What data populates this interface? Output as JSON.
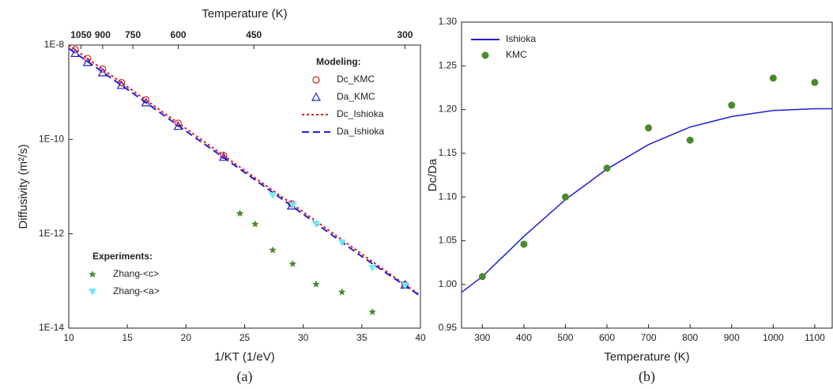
{
  "chart_data": [
    {
      "type": "scatter",
      "x2label": "Temperature (K)",
      "x_label": "1/KT (1/eV)",
      "y_label": "Diffusivity (m²/s)",
      "caption": "(a)",
      "xlim": [
        10,
        40
      ],
      "xticks": [
        10,
        15,
        20,
        25,
        30,
        35,
        40
      ],
      "x2ticks": [
        {
          "value": 11.05,
          "label": "1050"
        },
        {
          "value": 12.89,
          "label": "900"
        },
        {
          "value": 15.47,
          "label": "750"
        },
        {
          "value": 19.34,
          "label": "600"
        },
        {
          "value": 25.79,
          "label": "450"
        },
        {
          "value": 38.68,
          "label": "300"
        }
      ],
      "log_y": true,
      "ylim": [
        1e-14,
        1e-08
      ],
      "yticks": [
        {
          "value": 1e-14,
          "label": "1E-14"
        },
        {
          "value": 1e-12,
          "label": "1E-12"
        },
        {
          "value": 1e-10,
          "label": "1E-10"
        },
        {
          "value": 1e-08,
          "label": "1E-8"
        }
      ],
      "legend_headers": [
        "Modeling:",
        "Experiments:"
      ],
      "legend_loc": [
        "upper right",
        "lower left"
      ],
      "series": [
        {
          "name": "Dc_KMC",
          "group": 0,
          "marker": "open-circle",
          "color": "#e02020",
          "x": [
            10.55,
            11.6,
            12.89,
            14.5,
            16.58,
            19.34,
            23.21,
            29.01,
            38.68
          ],
          "values": [
            8e-09,
            5.2e-09,
            3.1e-09,
            1.6e-09,
            6.9e-10,
            2.2e-10,
            4.6e-11,
            4.3e-12,
            8.3e-14
          ]
        },
        {
          "name": "Da_KMC",
          "group": 0,
          "marker": "open-triangle",
          "color": "#2020d0",
          "x": [
            10.55,
            11.6,
            12.89,
            14.5,
            16.58,
            19.34,
            23.21,
            29.01,
            38.68
          ],
          "values": [
            6.7e-09,
            4.3e-09,
            2.6e-09,
            1.4e-09,
            6e-10,
            1.9e-10,
            4.2e-11,
            3.9e-12,
            8.2e-14
          ]
        },
        {
          "name": "Dc_Ishioka",
          "group": 0,
          "marker": "line",
          "line_style": "dotted",
          "color": "#e02020",
          "x": [
            10,
            15,
            20,
            25,
            30,
            35,
            40
          ],
          "values": [
            1e-08,
            1.3e-09,
            1.7e-10,
            2.2e-11,
            2.9e-12,
            3.7e-13,
            4.9e-14
          ]
        },
        {
          "name": "Da_Ishioka",
          "group": 0,
          "marker": "line",
          "line_style": "dashed",
          "color": "#2020d0",
          "x": [
            10,
            15,
            20,
            25,
            30,
            35,
            40
          ],
          "values": [
            8.5e-09,
            1.15e-09,
            1.5e-10,
            2e-11,
            2.6e-12,
            3.3e-13,
            4.8e-14
          ]
        },
        {
          "name": "Zhang-<c>",
          "group": 1,
          "marker": "star",
          "color": "#4a8a2a",
          "x": [
            24.6,
            25.9,
            27.4,
            29.1,
            31.1,
            33.3,
            35.9
          ],
          "values": [
            2.7e-12,
            1.6e-12,
            4.5e-13,
            2.3e-13,
            8.5e-14,
            5.8e-14,
            2.2e-14
          ]
        },
        {
          "name": "Zhang-<a>",
          "group": 1,
          "marker": "triangle-down",
          "color": "#70e8f8",
          "x": [
            27.4,
            29.1,
            31.1,
            33.3,
            35.9,
            38.7
          ],
          "values": [
            6.5e-12,
            4e-12,
            1.6e-12,
            6.5e-13,
            1.9e-13,
            8e-14
          ]
        }
      ]
    },
    {
      "type": "scatter",
      "x_label": "Temperature (K)",
      "y_label": "Dc/Da",
      "caption": "(b)",
      "xlim": [
        250,
        1142
      ],
      "xticks": [
        300,
        400,
        500,
        600,
        700,
        800,
        900,
        1000,
        1100
      ],
      "ylim": [
        0.95,
        1.3
      ],
      "yticks": [
        0.95,
        {
          "value": 1.0,
          "label": "1.00"
        },
        1.05,
        {
          "value": 1.1,
          "label": "1.10"
        },
        1.15,
        {
          "value": 1.2,
          "label": "1.20"
        },
        1.25,
        {
          "value": 1.3,
          "label": "1.30"
        }
      ],
      "legend_loc": [
        "upper left"
      ],
      "series": [
        {
          "name": "Ishioka",
          "marker": "line",
          "line_style": "solid",
          "color": "#2020d0",
          "x": [
            250,
            300,
            400,
            500,
            600,
            700,
            800,
            900,
            1000,
            1100,
            1142
          ],
          "values": [
            0.991,
            1.009,
            1.055,
            1.097,
            1.132,
            1.16,
            1.18,
            1.192,
            1.199,
            1.201,
            1.201
          ]
        },
        {
          "name": "KMC",
          "marker": "circle",
          "color": "#4a8a2a",
          "x": [
            300,
            400,
            500,
            600,
            700,
            800,
            900,
            1000,
            1100
          ],
          "values": [
            1.009,
            1.046,
            1.1,
            1.133,
            1.179,
            1.165,
            1.205,
            1.236,
            1.231
          ]
        }
      ]
    }
  ]
}
